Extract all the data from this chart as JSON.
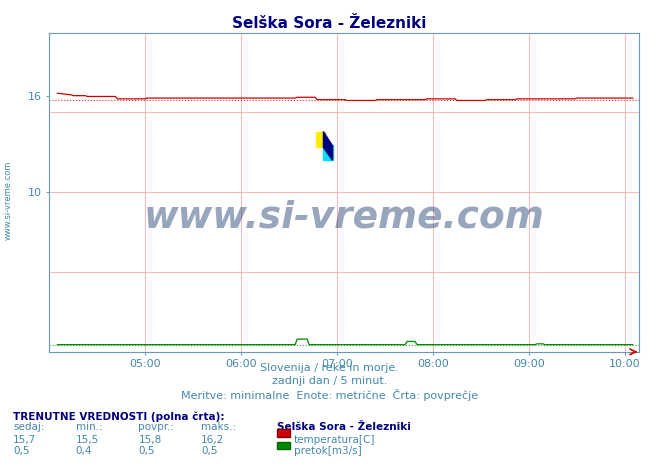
{
  "title": "Selška Sora - Železniki",
  "title_color": "#000080",
  "bg_color": "#ffffff",
  "plot_bg_color": "#ffffff",
  "grid_color": "#ffaaaa",
  "x_min": 4.0,
  "x_max": 10.15,
  "y_min": 0,
  "y_max": 20,
  "y_ticks": [
    10,
    16
  ],
  "y_tick_labels": [
    "10",
    "16"
  ],
  "x_ticks": [
    5,
    6,
    7,
    8,
    9,
    10
  ],
  "x_tick_labels": [
    "05:00",
    "06:00",
    "07:00",
    "08:00",
    "09:00",
    "10:00"
  ],
  "temp_color": "#cc0000",
  "flow_color": "#008800",
  "watermark_text": "www.si-vreme.com",
  "watermark_color": "#1a3a6b",
  "sub_text1": "Slovenija / reke in morje.",
  "sub_text2": "zadnji dan / 5 minut.",
  "sub_text3": "Meritve: minimalne  Enote: metrične  Črta: povprečje",
  "sub_text_color": "#4488aa",
  "footer_label_color": "#000080",
  "ylabel_text": "www.si-vreme.com",
  "ylabel_color": "#4488aa",
  "temp_avg": 15.8,
  "flow_avg": 0.45,
  "n_points": 289
}
